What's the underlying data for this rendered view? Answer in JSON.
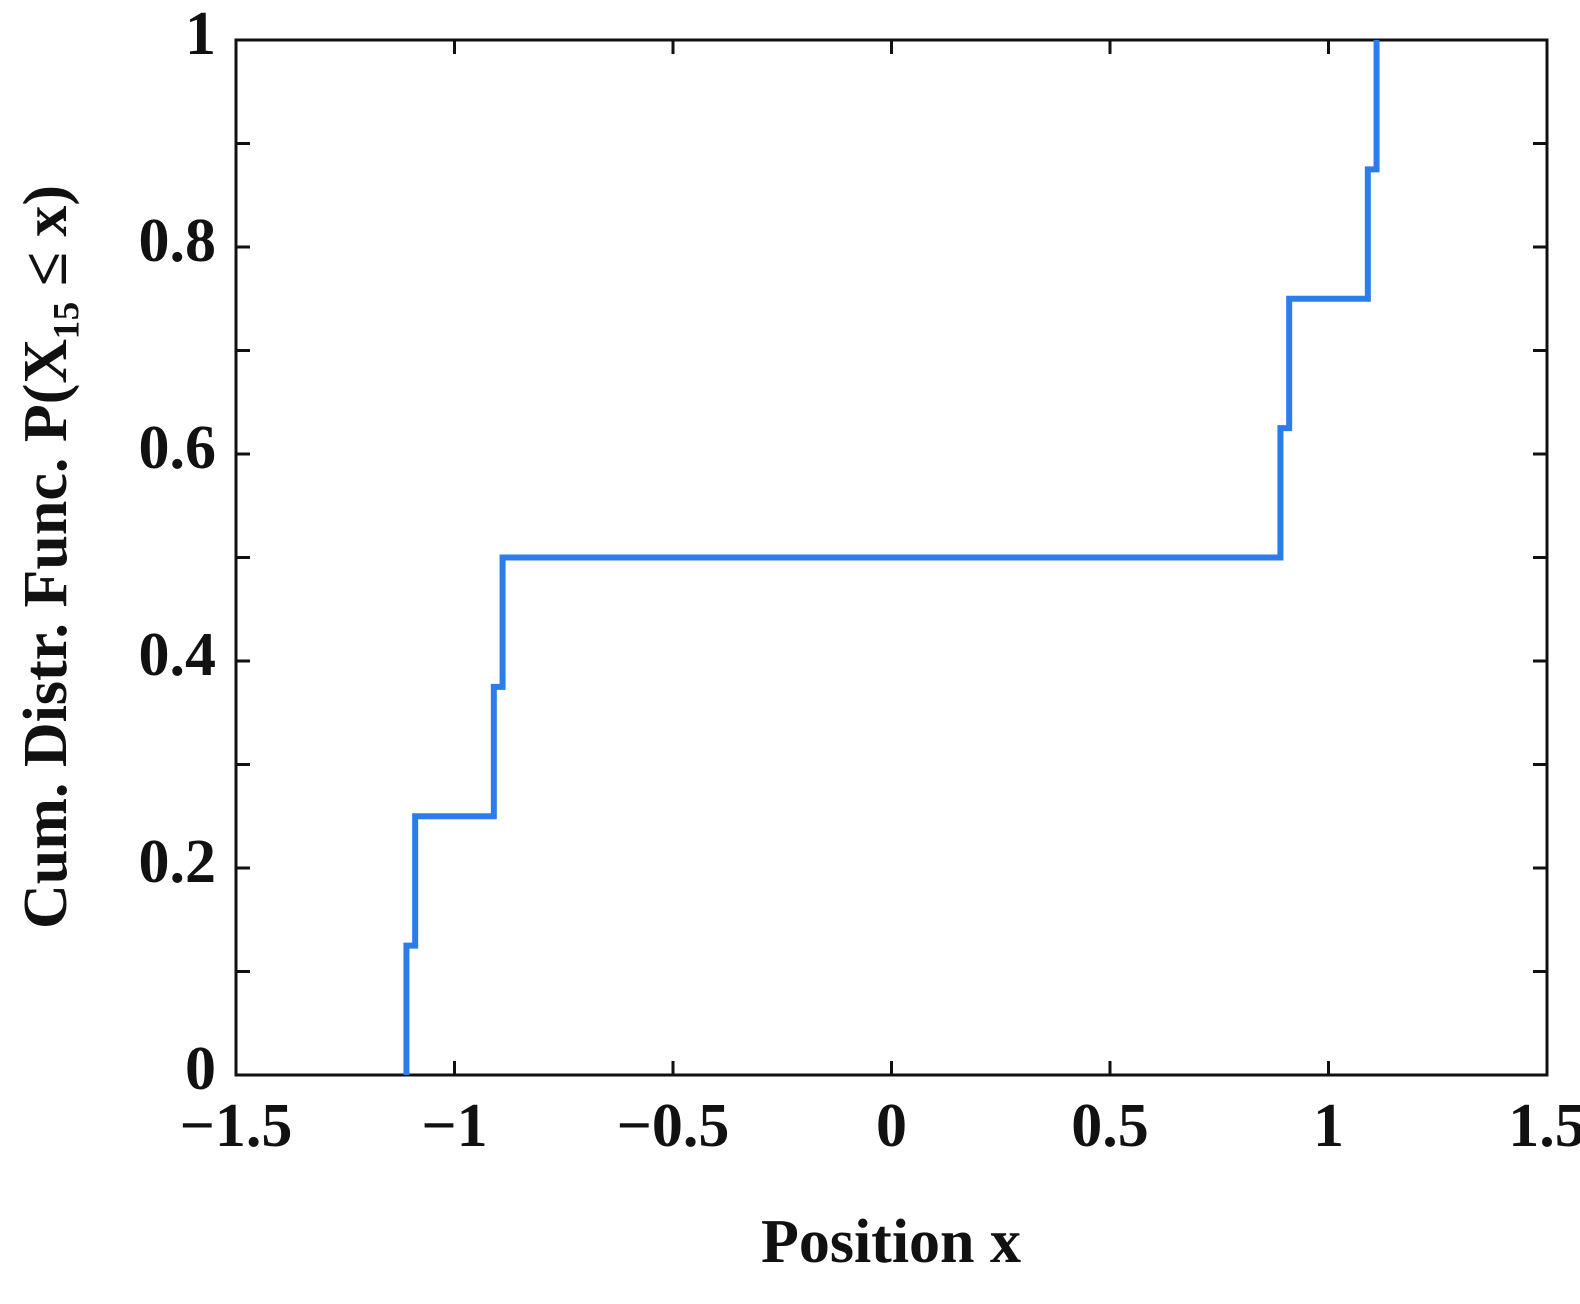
{
  "chart_data": {
    "type": "line",
    "x_label": "Position x",
    "y_label": "Cum. Distr. Func. P(X₁₅ ≤ x)",
    "x": [
      -1.11,
      -1.11,
      -1.09,
      -1.09,
      -0.91,
      -0.91,
      -0.89,
      -0.89,
      0.89,
      0.89,
      0.91,
      0.91,
      1.09,
      1.09,
      1.11,
      1.11
    ],
    "series": [
      {
        "color": "#2b7de9",
        "values": [
          0,
          0.125,
          0.125,
          0.25,
          0.25,
          0.375,
          0.375,
          0.5,
          0.5,
          0.625,
          0.625,
          0.75,
          0.75,
          0.875,
          0.875,
          1
        ]
      }
    ],
    "xlim": [
      -1.5,
      1.5
    ],
    "ylim": [
      0,
      1
    ],
    "xticks": [
      {
        "value": -1.5,
        "label": "−1.5"
      },
      {
        "value": -1,
        "label": "−1"
      },
      {
        "value": -0.5,
        "label": "−0.5"
      },
      0,
      0.5,
      1,
      1.5
    ],
    "yticks": [
      0,
      0.2,
      0.4,
      0.6,
      0.8,
      1
    ],
    "yminorticks": [
      0.1,
      0.3,
      0.5,
      0.7,
      0.9
    ],
    "grid": false
  }
}
